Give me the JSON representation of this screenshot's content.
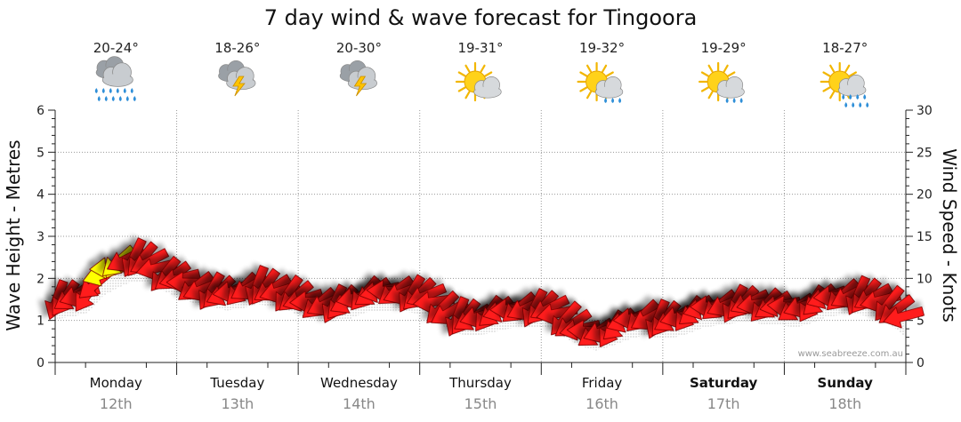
{
  "chart_data": {
    "type": "line",
    "title": "7 day wind & wave forecast for Tingoora",
    "ylabel_left": "Wave Height - Metres",
    "ylabel_right": "Wind Speed - Knots",
    "ylim_left": [
      0,
      6
    ],
    "ylim_right": [
      0,
      30
    ],
    "yticks_left": [
      "0",
      "1",
      "2",
      "3",
      "4",
      "5",
      "6"
    ],
    "yticks_right": [
      "0",
      "5",
      "10",
      "15",
      "20",
      "25",
      "30"
    ],
    "days": [
      {
        "name": "Monday",
        "date": "12th",
        "temp": "20-24°",
        "weather": "rain-icon",
        "weekend": false
      },
      {
        "name": "Tuesday",
        "date": "13th",
        "temp": "18-26°",
        "weather": "thunderstorm-icon",
        "weekend": false
      },
      {
        "name": "Wednesday",
        "date": "14th",
        "temp": "20-30°",
        "weather": "thunderstorm-icon",
        "weekend": false
      },
      {
        "name": "Thursday",
        "date": "15th",
        "temp": "19-31°",
        "weather": "partly-cloudy-icon",
        "weekend": false
      },
      {
        "name": "Friday",
        "date": "16th",
        "temp": "19-32°",
        "weather": "partly-cloudy-showers-icon",
        "weekend": false
      },
      {
        "name": "Saturday",
        "date": "17th",
        "temp": "19-29°",
        "weather": "partly-cloudy-showers-icon",
        "weekend": true
      },
      {
        "name": "Sunday",
        "date": "18th",
        "temp": "18-27°",
        "weather": "partly-cloudy-rain-icon",
        "weekend": true
      }
    ],
    "wave_height_m": [
      1.5,
      1.55,
      1.65,
      2.05,
      2.25,
      2.4,
      2.35,
      2.15,
      2.0,
      1.85,
      1.8,
      1.7,
      1.75,
      1.85,
      1.8,
      1.7,
      1.55,
      1.45,
      1.45,
      1.5,
      1.65,
      1.7,
      1.7,
      1.65,
      1.6,
      1.35,
      1.15,
      1.1,
      1.15,
      1.25,
      1.3,
      1.3,
      1.3,
      1.05,
      0.85,
      0.75,
      0.85,
      1.0,
      1.1,
      1.05,
      1.05,
      1.15,
      1.3,
      1.35,
      1.4,
      1.45,
      1.35,
      1.35,
      1.3,
      1.4,
      1.55,
      1.6,
      1.6,
      1.55,
      1.4,
      1.1
    ],
    "wind_knots": [
      7.5,
      7.8,
      8.2,
      10.5,
      12.0,
      12.5,
      12.0,
      10.5,
      10.0,
      9.0,
      8.5,
      8.2,
      8.7,
      9.2,
      8.8,
      8.2,
      7.5,
      7.0,
      7.0,
      7.3,
      8.2,
      8.5,
      8.5,
      8.2,
      8.0,
      6.5,
      5.5,
      5.3,
      5.8,
      6.2,
      6.5,
      6.5,
      6.5,
      5.2,
      4.0,
      3.5,
      4.0,
      5.0,
      5.5,
      5.2,
      5.2,
      5.8,
      6.5,
      6.8,
      7.0,
      7.2,
      6.8,
      6.8,
      6.5,
      7.0,
      7.8,
      8.0,
      8.0,
      7.8,
      7.0,
      5.5
    ],
    "gust_knots_markers": [
      {
        "index": 3,
        "color": "#ffff00"
      },
      {
        "index": 4,
        "color": "#ffff00"
      }
    ],
    "grid": true,
    "credit": "www.seabreeze.com.au"
  }
}
